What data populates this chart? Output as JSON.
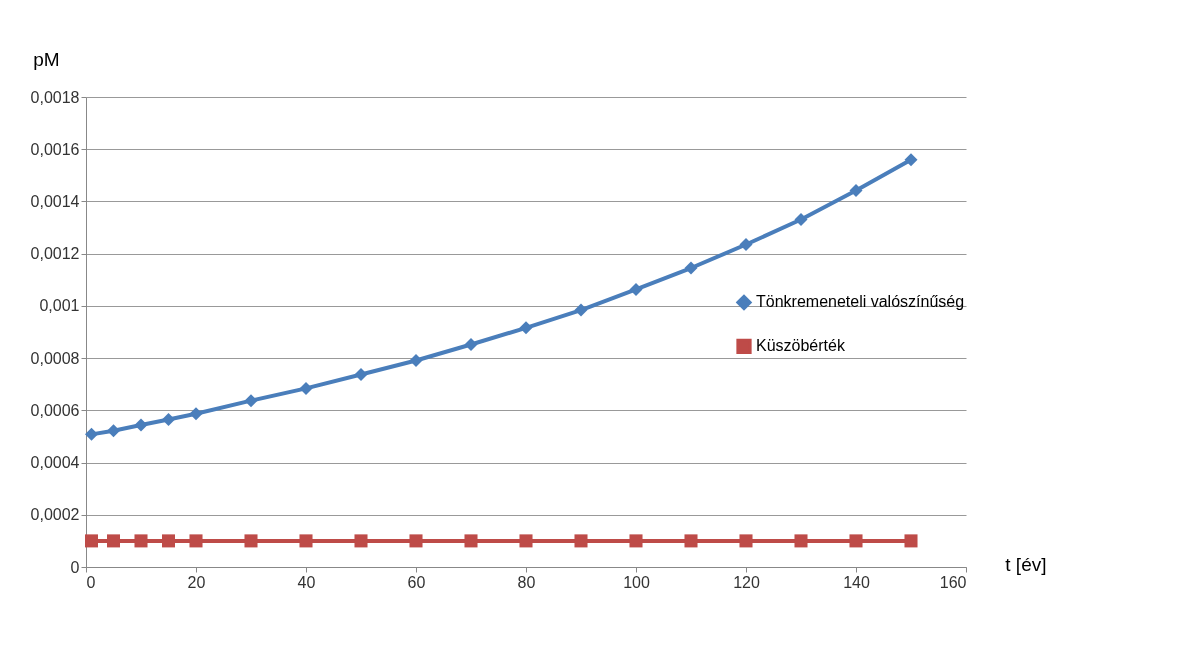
{
  "chart_data": {
    "type": "line",
    "xlabel": "t [év]",
    "ylabel": "pM",
    "x": [
      1,
      5,
      10,
      15,
      20,
      30,
      40,
      50,
      60,
      70,
      80,
      90,
      100,
      110,
      120,
      130,
      140,
      150
    ],
    "series": [
      {
        "name": "Tönkremeneteli valószínűség",
        "color": "#4a7ebb",
        "marker": "diamond",
        "values": [
          0.000508,
          0.000522,
          0.000544,
          0.000565,
          0.000587,
          0.000637,
          0.000684,
          0.000737,
          0.000791,
          0.000852,
          0.000916,
          0.000984,
          0.001063,
          0.001145,
          0.001235,
          0.001331,
          0.001442,
          0.00156
        ]
      },
      {
        "name": "Küszöbérték",
        "color": "#be4b48",
        "marker": "square",
        "values": [
          0.0001,
          0.0001,
          0.0001,
          0.0001,
          0.0001,
          0.0001,
          0.0001,
          0.0001,
          0.0001,
          0.0001,
          0.0001,
          0.0001,
          0.0001,
          0.0001,
          0.0001,
          0.0001,
          0.0001,
          0.0001
        ]
      }
    ],
    "xlim": [
      0,
      160
    ],
    "xticks": [
      0,
      20,
      40,
      60,
      80,
      100,
      120,
      140,
      160
    ],
    "ylim": [
      0,
      0.0018
    ],
    "yticks": [
      {
        "value": 0,
        "label": "0"
      },
      {
        "value": 0.0002,
        "label": "0,0002"
      },
      {
        "value": 0.0004,
        "label": "0,0004"
      },
      {
        "value": 0.0006,
        "label": "0,0006"
      },
      {
        "value": 0.0008,
        "label": "0,0008"
      },
      {
        "value": 0.001,
        "label": "0,001"
      },
      {
        "value": 0.0012,
        "label": "0,0012"
      },
      {
        "value": 0.0014,
        "label": "0,0014"
      },
      {
        "value": 0.0016,
        "label": "0,0016"
      },
      {
        "value": 0.0018,
        "label": "0,0018"
      }
    ],
    "grid": "y",
    "legend": "right",
    "line_style": "solid"
  }
}
